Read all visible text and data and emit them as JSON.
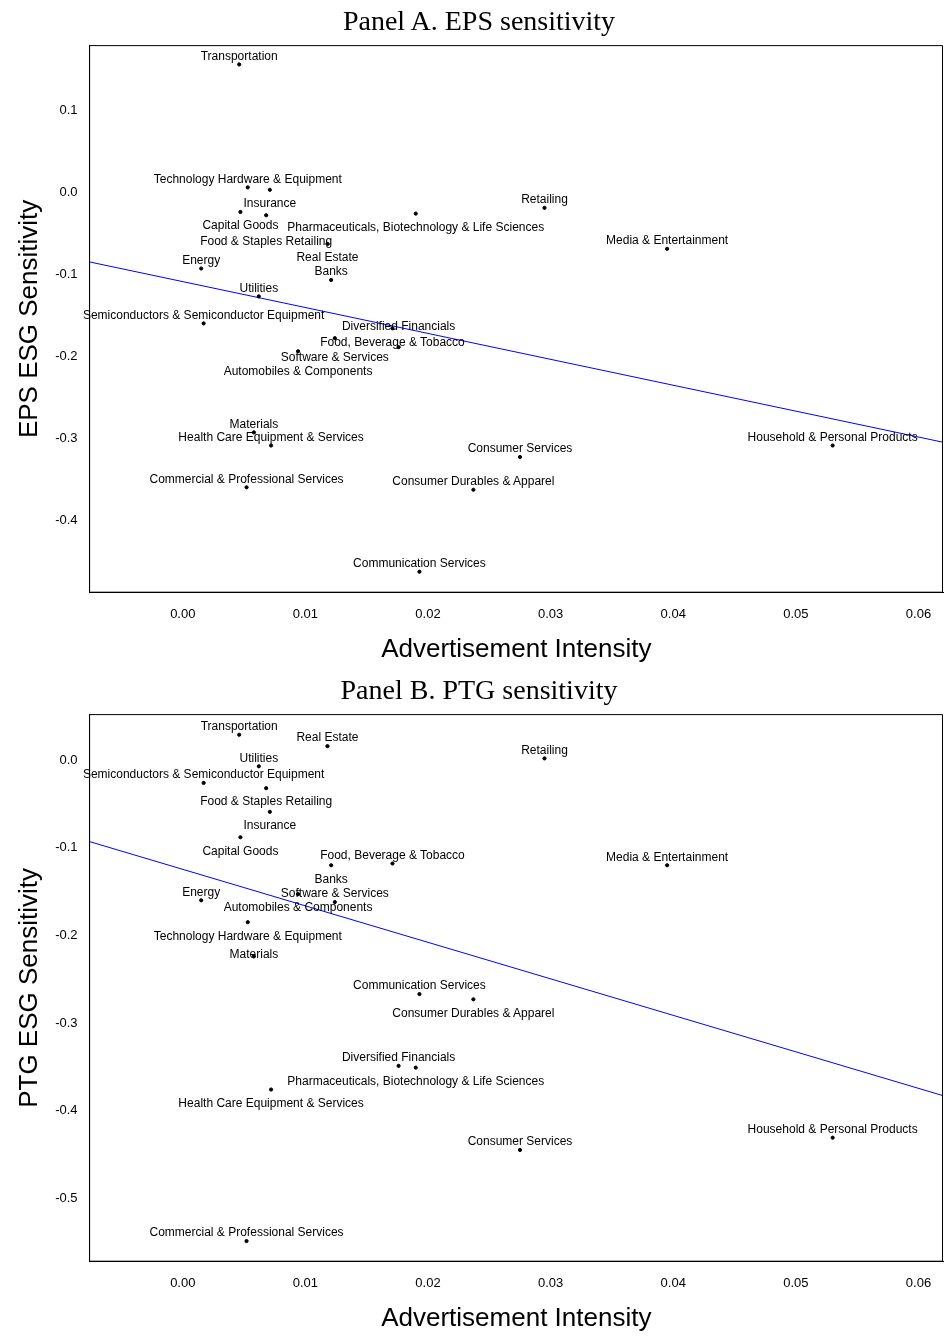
{
  "chart_data": [
    {
      "type": "scatter",
      "title": "Panel A. EPS sensitivity",
      "xlabel": "Advertisement Intensity",
      "ylabel": "EPS ESG Sensitivity",
      "grid": false,
      "legend": false,
      "xlim": [
        -0.0076,
        0.062
      ],
      "xticks": [
        {
          "value": 0,
          "label": "0.00"
        },
        {
          "value": 0.01,
          "label": "0.01"
        },
        {
          "value": 0.02,
          "label": "0.02"
        },
        {
          "value": 0.03,
          "label": "0.03"
        },
        {
          "value": 0.04,
          "label": "0.04"
        },
        {
          "value": 0.05,
          "label": "0.05"
        },
        {
          "value": 0.06,
          "label": "0.06"
        }
      ],
      "ylim": [
        -0.488,
        0.179
      ],
      "yticks": [
        -0.4,
        -0.3,
        -0.2,
        -0.1,
        {
          "value": 0,
          "label": "0.0"
        },
        0.1
      ],
      "series": [
        {
          "type": "scatter",
          "color": "#000000",
          "marker": "circle",
          "x": [
            0.0046,
            0.0053,
            0.0071,
            0.0047,
            0.0068,
            0.019,
            0.0295,
            0.0118,
            0.0395,
            0.0015,
            0.0121,
            0.0062,
            0.0017,
            0.0171,
            0.0124,
            0.0176,
            0.0094,
            0.0058,
            0.0072,
            0.053,
            0.0275,
            0.0052,
            0.0237,
            0.0193
          ],
          "values": [
            0.156,
            0.006,
            0.003,
            -0.024,
            -0.028,
            -0.026,
            -0.019,
            -0.063,
            -0.069,
            -0.093,
            -0.107,
            -0.127,
            -0.16,
            -0.166,
            -0.178,
            -0.189,
            -0.194,
            -0.293,
            -0.309,
            -0.309,
            -0.323,
            -0.36,
            -0.363,
            -0.463
          ],
          "value_labels": [
            "Transportation",
            "Technology Hardware & Equipment",
            "Insurance",
            "Capital Goods",
            "Food & Staples Retailing",
            "Pharmaceuticals, Biotechnology & Life Sciences",
            "Retailing",
            "Real Estate",
            "Media & Entertainment",
            "Energy",
            "Banks",
            "Utilities",
            "Semiconductors & Semiconductor Equipment",
            "Food, Beverage & Tobacco",
            "Software & Services",
            "Diversified Financials",
            "Automobiles & Components",
            "Materials",
            "Health Care Equipment & Services",
            "Household & Personal Products",
            "Consumer Services",
            "Commercial & Professional Services",
            "Consumer Durables & Apparel",
            "Communication Services"
          ]
        },
        {
          "type": "line",
          "color": "#0000ff",
          "x": [
            -0.0076,
            0.062
          ],
          "values": [
            -0.085,
            -0.305
          ],
          "marker": "none",
          "line_style": "solid"
        }
      ]
    },
    {
      "type": "scatter",
      "title": "Panel B. PTG sensitivity",
      "xlabel": "Advertisement Intensity",
      "ylabel": "PTG ESG Sensitivity",
      "grid": false,
      "legend": false,
      "xlim": [
        -0.0076,
        0.062
      ],
      "xticks": [
        {
          "value": 0,
          "label": "0.00"
        },
        {
          "value": 0.01,
          "label": "0.01"
        },
        {
          "value": 0.02,
          "label": "0.02"
        },
        {
          "value": 0.03,
          "label": "0.03"
        },
        {
          "value": 0.04,
          "label": "0.04"
        },
        {
          "value": 0.05,
          "label": "0.05"
        },
        {
          "value": 0.06,
          "label": "0.06"
        }
      ],
      "ylim": [
        -0.572,
        0.052
      ],
      "yticks": [
        -0.5,
        -0.4,
        -0.3,
        -0.2,
        -0.1,
        {
          "value": 0,
          "label": "0.0"
        }
      ],
      "series": [
        {
          "type": "scatter",
          "color": "#000000",
          "marker": "circle",
          "x": [
            0.0046,
            0.0118,
            0.0295,
            0.0062,
            0.0017,
            0.0068,
            0.0071,
            0.0047,
            0.0171,
            0.0121,
            0.0395,
            0.0094,
            0.0015,
            0.0124,
            0.0053,
            0.0058,
            0.0193,
            0.0237,
            0.0176,
            0.019,
            0.0072,
            0.053,
            0.0275,
            0.0052
          ],
          "values": [
            0.029,
            0.016,
            0.002,
            -0.007,
            -0.026,
            -0.032,
            -0.059,
            -0.088,
            -0.118,
            -0.12,
            -0.12,
            -0.153,
            -0.16,
            -0.162,
            -0.185,
            -0.224,
            -0.267,
            -0.273,
            -0.349,
            -0.351,
            -0.376,
            -0.431,
            -0.445,
            -0.549
          ],
          "value_labels": [
            "Transportation",
            "Real Estate",
            "Retailing",
            "Utilities",
            "Semiconductors & Semiconductor Equipment",
            "Food & Staples Retailing",
            "Insurance",
            "Capital Goods",
            "Food, Beverage & Tobacco",
            "Banks",
            "Media & Entertainment",
            "Automobiles & Components",
            "Energy",
            "Software & Services",
            "Technology Hardware & Equipment",
            "Materials",
            "Communication Services",
            "Consumer Durables & Apparel",
            "Diversified Financials",
            "Pharmaceuticals, Biotechnology & Life Sciences",
            "Health Care Equipment & Services",
            "Household & Personal Products",
            "Consumer Services",
            "Commercial & Professional Services"
          ]
        },
        {
          "type": "line",
          "color": "#0000ff",
          "x": [
            -0.0076,
            0.062
          ],
          "values": [
            -0.093,
            -0.383
          ],
          "marker": "none",
          "line_style": "solid"
        }
      ]
    }
  ]
}
